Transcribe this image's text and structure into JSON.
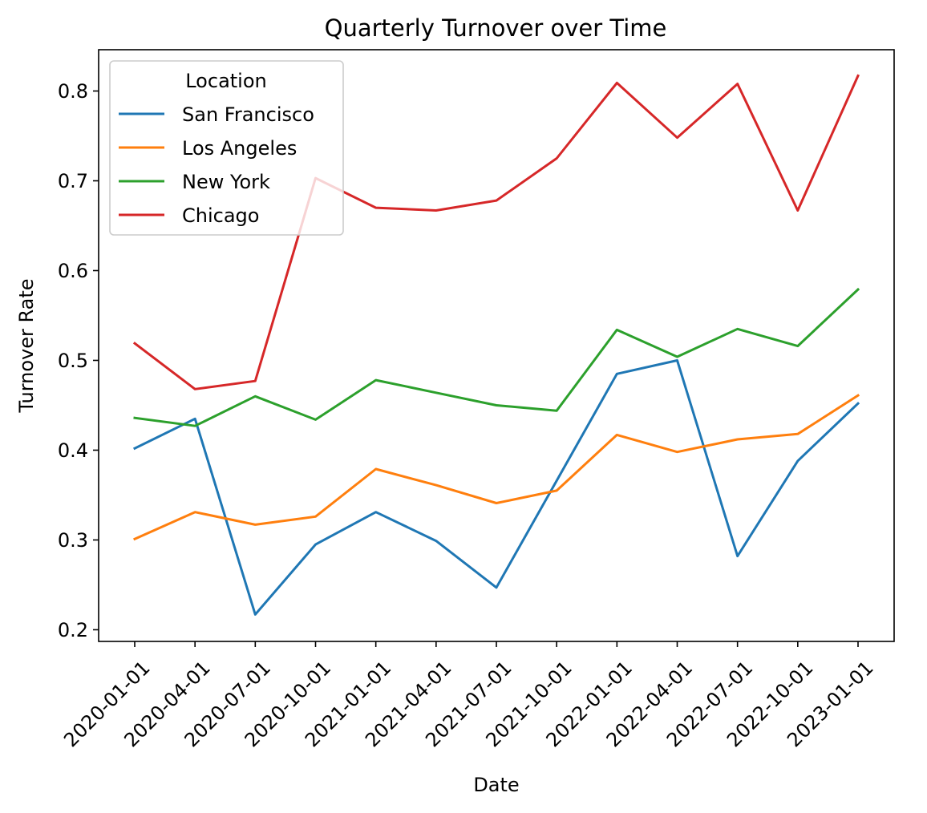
{
  "chart_data": {
    "type": "line",
    "title": "Quarterly Turnover over Time",
    "xlabel": "Date",
    "ylabel": "Turnover Rate",
    "ylim": [
      0.187,
      0.846
    ],
    "yticks": [
      0.2,
      0.3,
      0.4,
      0.5,
      0.6,
      0.7,
      0.8
    ],
    "ytick_labels": [
      "0.2",
      "0.3",
      "0.4",
      "0.5",
      "0.6",
      "0.7",
      "0.8"
    ],
    "categories": [
      "2020-01-01",
      "2020-04-01",
      "2020-07-01",
      "2020-10-01",
      "2021-01-01",
      "2021-04-01",
      "2021-07-01",
      "2021-10-01",
      "2022-01-01",
      "2022-04-01",
      "2022-07-01",
      "2022-10-01",
      "2023-01-01"
    ],
    "grid": false,
    "legend": {
      "title": "Location",
      "placement": "upper-left"
    },
    "series": [
      {
        "name": "San Francisco",
        "color": "#1f77b4",
        "values": [
          0.402,
          0.435,
          0.217,
          0.295,
          0.331,
          0.299,
          0.247,
          0.366,
          0.485,
          0.5,
          0.282,
          0.388,
          0.452
        ]
      },
      {
        "name": "Los Angeles",
        "color": "#ff7f0e",
        "values": [
          0.301,
          0.331,
          0.317,
          0.326,
          0.379,
          0.361,
          0.341,
          0.355,
          0.417,
          0.398,
          0.412,
          0.418,
          0.461
        ]
      },
      {
        "name": "New York",
        "color": "#2ca02c",
        "values": [
          0.436,
          0.427,
          0.46,
          0.434,
          0.478,
          0.464,
          0.45,
          0.444,
          0.534,
          0.504,
          0.535,
          0.516,
          0.579
        ]
      },
      {
        "name": "Chicago",
        "color": "#d62728",
        "values": [
          0.519,
          0.468,
          0.477,
          0.703,
          0.67,
          0.667,
          0.678,
          0.725,
          0.809,
          0.748,
          0.808,
          0.667,
          0.817
        ]
      }
    ]
  }
}
